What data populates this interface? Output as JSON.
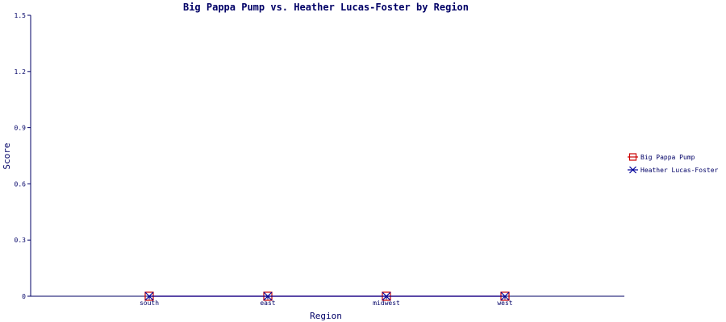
{
  "chart_data": {
    "type": "line",
    "title": "Big Pappa Pump vs. Heather Lucas-Foster by Region",
    "xlabel": "Region",
    "ylabel": "Score",
    "categories": [
      "south",
      "east",
      "midwest",
      "west"
    ],
    "ylim": [
      0,
      1.5
    ],
    "yticks": [
      "0",
      "0.3",
      "0.6",
      "0.9",
      "1.2",
      "1.5"
    ],
    "grid": false,
    "legend_position": "right",
    "series": [
      {
        "name": "Big Pappa Pump",
        "values": [
          0,
          0,
          0,
          0
        ],
        "color": "#cc0000",
        "marker": "square"
      },
      {
        "name": "Heather Lucas-Foster",
        "values": [
          0,
          0,
          0,
          0
        ],
        "color": "#000099",
        "marker": "x"
      }
    ]
  }
}
